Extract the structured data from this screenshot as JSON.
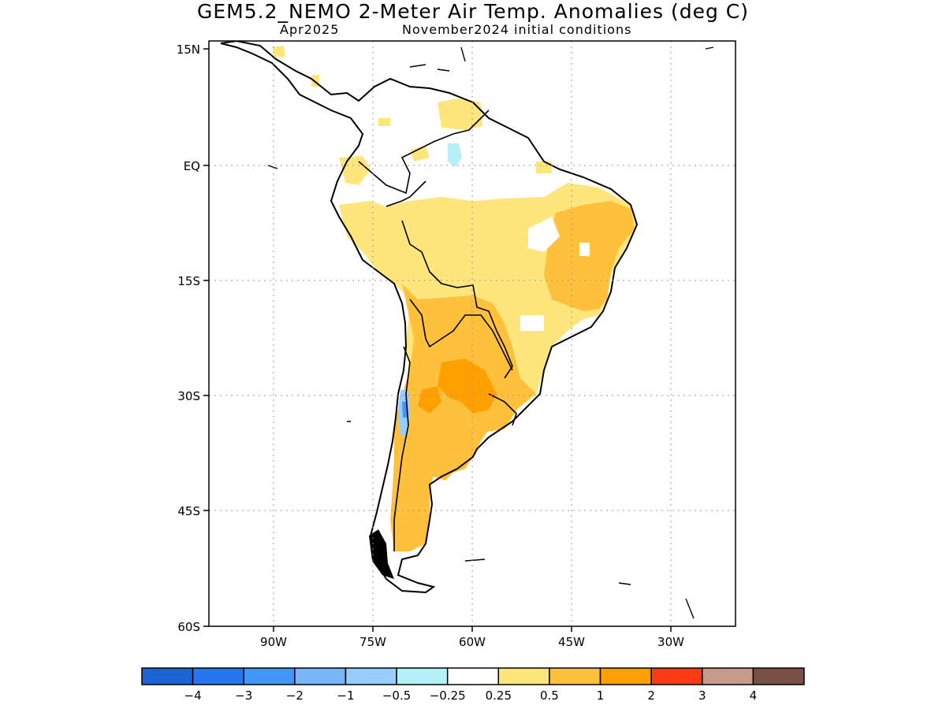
{
  "header": {
    "title": "GEM5.2_NEMO 2-Meter Air Temp. Anomalies (deg C)",
    "valid_month": "Apr2025",
    "initial_conditions": "November2024 initial conditions"
  },
  "axes": {
    "lat_ticks": [
      "15N",
      "EQ",
      "15S",
      "30S",
      "45S",
      "60S"
    ],
    "lon_ticks": [
      "90W",
      "75W",
      "60W",
      "45W",
      "30W"
    ]
  },
  "colorbar": {
    "colors": [
      "#1a64d4",
      "#2876ee",
      "#4196f8",
      "#78b6f8",
      "#96ceff",
      "#b4f0fa",
      "#ffffff",
      "#ffe67c",
      "#ffc03c",
      "#ffa000",
      "#ff3a14",
      "#c89a8c",
      "#785046"
    ],
    "labels": [
      "-4",
      "-3",
      "-2",
      "-1",
      "-0.5",
      "-0.25",
      "0.25",
      "0.5",
      "1",
      "2",
      "3",
      "4"
    ]
  },
  "legend_colors": {
    "slight_warm": "#ffe67c",
    "warm": "#ffc03c",
    "warmer": "#ffa000",
    "slight_cool": "#b4f0fa",
    "cool": "#96ceff",
    "moderate_cool": "#78b6f8"
  }
}
